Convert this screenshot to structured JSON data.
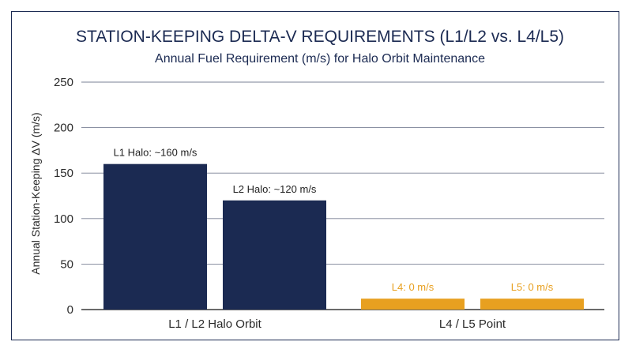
{
  "chart_data": {
    "type": "bar",
    "title": "STATION-KEEPING DELTA-V REQUIREMENTS (L1/L2 vs. L4/L5)",
    "subtitle": "Annual Fuel Requirement (m/s) for Halo Orbit Maintenance",
    "ylabel": "Annual Station-Keeping ΔV (m/s)",
    "ylim": [
      0,
      250
    ],
    "yticks": [
      0,
      50,
      100,
      150,
      200,
      250
    ],
    "grid": true,
    "groups": [
      {
        "label": "L1 / L2 Halo Orbit",
        "bars": [
          {
            "value": 160,
            "label": "L1 Halo: ~160 m/s",
            "color": "#1b2a52",
            "label_color": "#1f1f1f"
          },
          {
            "value": 120,
            "label": "L2 Halo: ~120 m/s",
            "color": "#1b2a52",
            "label_color": "#1f1f1f"
          }
        ]
      },
      {
        "label": "L4 / L5 Point",
        "bars": [
          {
            "value": 0,
            "display_value": 12,
            "label": "L4: 0 m/s",
            "color": "#e8a020",
            "label_color": "#e8a020"
          },
          {
            "value": 0,
            "display_value": 12,
            "label": "L5: 0 m/s",
            "color": "#e8a020",
            "label_color": "#e8a020"
          }
        ]
      }
    ]
  }
}
